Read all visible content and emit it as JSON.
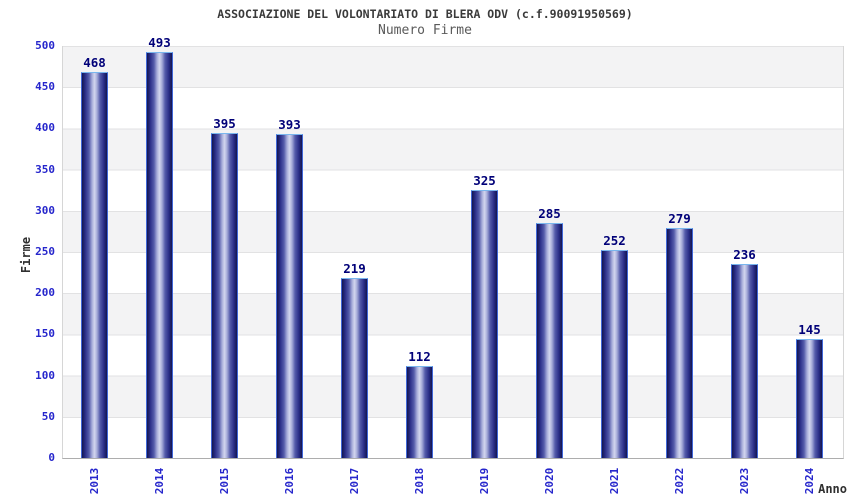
{
  "chart_data": {
    "type": "bar",
    "title": "ASSOCIAZIONE DEL VOLONTARIATO DI BLERA ODV (c.f.90091950569)",
    "subtitle": "Numero Firme",
    "xlabel": "Anno",
    "ylabel": "Firme",
    "categories": [
      "2013",
      "2014",
      "2015",
      "2016",
      "2017",
      "2018",
      "2019",
      "2020",
      "2021",
      "2022",
      "2023",
      "2024"
    ],
    "values": [
      468,
      493,
      395,
      393,
      219,
      112,
      325,
      285,
      252,
      279,
      236,
      145
    ],
    "ylim": [
      0,
      500
    ],
    "yticks": [
      0,
      50,
      100,
      150,
      200,
      250,
      300,
      350,
      400,
      450,
      500
    ],
    "grid": "horizontal",
    "band_rows": "alternating gray/white every 50 units, gray at 450-500",
    "legend_position": "none",
    "colors": {
      "tick_text": "#2626cc",
      "bar_value_text": "#000078",
      "bar_gradient_dark": "#14164f",
      "bar_gradient_light": "#d3d6ee",
      "bar_border_side": "#3f66d8",
      "bar_border_top": "#79b6ee",
      "band_gray": "#f3f3f4",
      "grid_line": "#e2e2e3",
      "axis_line": "#adadad",
      "title_text": "#3a3a3a",
      "subtitle_text": "#5a5a5a",
      "axis_title_text": "#303030",
      "background": "#ffffff"
    }
  }
}
